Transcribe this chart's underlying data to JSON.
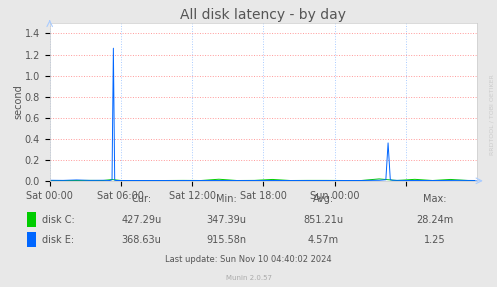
{
  "title": "All disk latency - by day",
  "ylabel": "second",
  "background_color": "#e8e8e8",
  "plot_bg_color": "#ffffff",
  "grid_color": "#ff9999",
  "xlim": [
    0,
    96
  ],
  "ylim": [
    0,
    1.5
  ],
  "yticks": [
    0.0,
    0.2,
    0.4,
    0.6,
    0.8,
    1.0,
    1.2,
    1.4
  ],
  "xtick_positions": [
    0,
    16,
    32,
    48,
    64,
    80
  ],
  "xtick_labels": [
    "Sat 00:00",
    "Sat 06:00",
    "Sat 12:00",
    "Sat 18:00",
    "Sun 00:00",
    ""
  ],
  "disk_c_color": "#00cc00",
  "disk_e_color": "#0066ff",
  "disk_c_data_x": [
    0,
    3,
    6,
    9,
    12,
    14,
    16,
    19,
    22,
    26,
    30,
    34,
    38,
    42,
    46,
    50,
    54,
    58,
    62,
    66,
    70,
    74,
    78,
    82,
    86,
    90,
    94,
    96
  ],
  "disk_c_data_y": [
    0.003,
    0.003,
    0.003,
    0.004,
    0.003,
    0.012,
    0.003,
    0.003,
    0.003,
    0.003,
    0.004,
    0.003,
    0.015,
    0.003,
    0.004,
    0.013,
    0.003,
    0.004,
    0.004,
    0.003,
    0.003,
    0.018,
    0.003,
    0.014,
    0.003,
    0.013,
    0.003,
    0.003
  ],
  "disk_e_data_x": [
    0,
    3,
    6,
    9,
    12,
    13.5,
    14,
    14.3,
    14.6,
    15,
    18,
    22,
    26,
    30,
    34,
    38,
    42,
    46,
    50,
    54,
    58,
    62,
    66,
    70,
    74,
    75.5,
    76,
    76.5,
    77,
    80,
    84,
    88,
    92,
    96
  ],
  "disk_e_data_y": [
    0.005,
    0.004,
    0.008,
    0.004,
    0.005,
    0.003,
    0.01,
    1.26,
    0.005,
    0.003,
    0.003,
    0.003,
    0.003,
    0.003,
    0.003,
    0.003,
    0.003,
    0.003,
    0.003,
    0.003,
    0.003,
    0.003,
    0.003,
    0.003,
    0.005,
    0.01,
    0.36,
    0.01,
    0.005,
    0.003,
    0.003,
    0.003,
    0.004,
    0.003
  ],
  "cur_label": "Cur:",
  "min_label": "Min:",
  "avg_label": "Avg:",
  "max_label": "Max:",
  "disk_c_cur": "427.29u",
  "disk_c_min": "347.39u",
  "disk_c_avg": "851.21u",
  "disk_c_max": "28.24m",
  "disk_e_cur": "368.63u",
  "disk_e_min": "915.58n",
  "disk_e_avg": "4.57m",
  "disk_e_max": "1.25",
  "last_update": "Last update: Sun Nov 10 04:40:02 2024",
  "munin_version": "Munin 2.0.57",
  "rrdtool_label": "RRDTOOL / TOBI OETIKER",
  "font_color": "#555555",
  "title_fontsize": 10,
  "axis_fontsize": 7,
  "legend_fontsize": 7
}
